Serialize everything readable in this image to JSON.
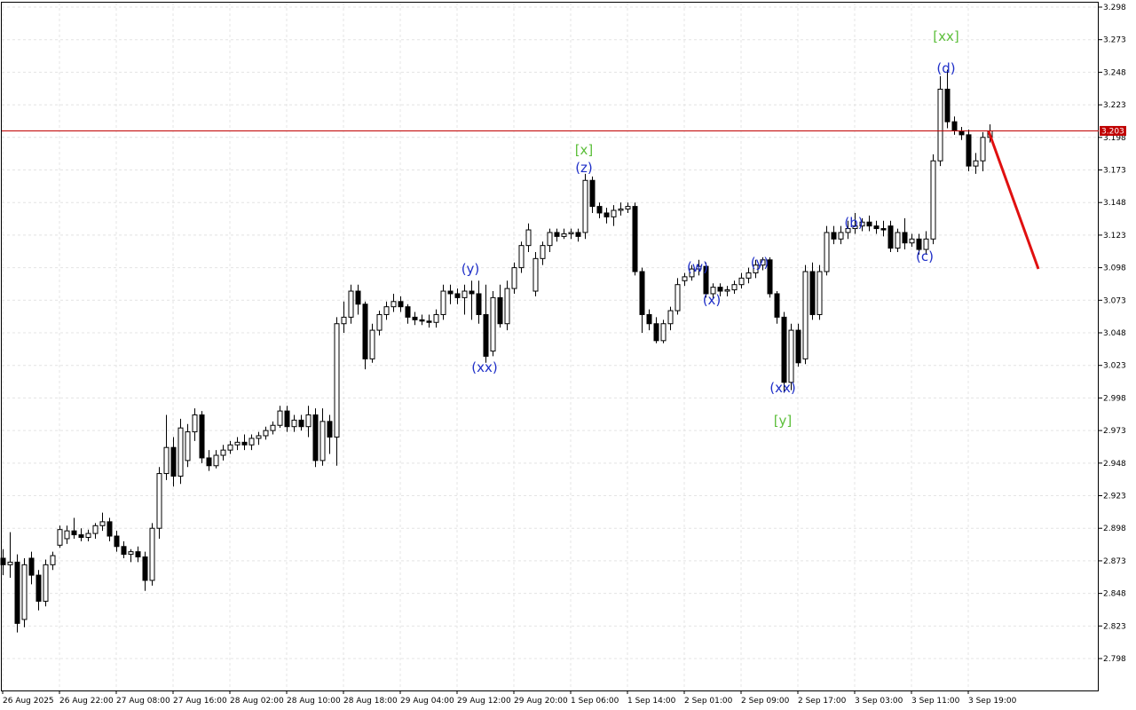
{
  "chart_data": {
    "type": "candlestick",
    "categories": [
      "26 Aug 2025",
      null,
      null,
      null,
      null,
      null,
      null,
      null,
      "26 Aug 22:00",
      null,
      null,
      null,
      null,
      null,
      null,
      null,
      "27 Aug 08:00",
      null,
      null,
      null,
      null,
      null,
      null,
      null,
      "27 Aug 16:00",
      null,
      null,
      null,
      null,
      null,
      null,
      null,
      "28 Aug 02:00",
      null,
      null,
      null,
      null,
      null,
      null,
      null,
      "28 Aug 10:00",
      null,
      null,
      null,
      null,
      null,
      null,
      null,
      "28 Aug 18:00",
      null,
      null,
      null,
      null,
      null,
      null,
      null,
      "29 Aug 04:00",
      null,
      null,
      null,
      null,
      null,
      null,
      null,
      "29 Aug 12:00",
      null,
      null,
      null,
      null,
      null,
      null,
      null,
      "29 Aug 20:00",
      null,
      null,
      null,
      null,
      null,
      null,
      null,
      "1 Sep 06:00",
      null,
      null,
      null,
      null,
      null,
      null,
      null,
      "1 Sep 14:00",
      null,
      null,
      null,
      null,
      null,
      null,
      null,
      "2 Sep 01:00",
      null,
      null,
      null,
      null,
      null,
      null,
      null,
      "2 Sep 09:00",
      null,
      null,
      null,
      null,
      null,
      null,
      null,
      "2 Sep 17:00",
      null,
      null,
      null,
      null,
      null,
      null,
      null,
      "3 Sep 03:00",
      null,
      null,
      null,
      null,
      null,
      null,
      null,
      "3 Sep 11:00",
      null,
      null,
      null,
      null,
      null,
      null,
      null,
      "3 Sep 19:00",
      null,
      null,
      null
    ],
    "ohlc": [
      [
        2.875,
        2.882,
        2.862,
        2.87
      ],
      [
        2.87,
        2.895,
        2.86,
        2.872
      ],
      [
        2.872,
        2.878,
        2.818,
        2.825
      ],
      [
        2.828,
        2.875,
        2.822,
        2.87
      ],
      [
        2.875,
        2.88,
        2.855,
        2.862
      ],
      [
        2.862,
        2.866,
        2.835,
        2.842
      ],
      [
        2.842,
        2.874,
        2.838,
        2.87
      ],
      [
        2.87,
        2.88,
        2.866,
        2.877
      ],
      [
        2.885,
        2.9,
        2.883,
        2.897
      ],
      [
        2.89,
        2.9,
        2.886,
        2.896
      ],
      [
        2.896,
        2.906,
        2.89,
        2.893
      ],
      [
        2.893,
        2.898,
        2.888,
        2.891
      ],
      [
        2.891,
        2.897,
        2.888,
        2.894
      ],
      [
        2.894,
        2.902,
        2.89,
        2.9
      ],
      [
        2.9,
        2.91,
        2.896,
        2.903
      ],
      [
        2.903,
        2.906,
        2.888,
        2.892
      ],
      [
        2.892,
        2.896,
        2.88,
        2.884
      ],
      [
        2.884,
        2.888,
        2.875,
        2.878
      ],
      [
        2.878,
        2.882,
        2.872,
        2.88
      ],
      [
        2.88,
        2.884,
        2.872,
        2.876
      ],
      [
        2.876,
        2.88,
        2.85,
        2.858
      ],
      [
        2.858,
        2.902,
        2.854,
        2.898
      ],
      [
        2.898,
        2.945,
        2.89,
        2.94
      ],
      [
        2.94,
        2.985,
        2.935,
        2.96
      ],
      [
        2.96,
        2.968,
        2.93,
        2.938
      ],
      [
        2.938,
        2.982,
        2.932,
        2.975
      ],
      [
        2.95,
        2.978,
        2.945,
        2.972
      ],
      [
        2.972,
        2.99,
        2.965,
        2.985
      ],
      [
        2.985,
        2.988,
        2.948,
        2.952
      ],
      [
        2.952,
        2.958,
        2.942,
        2.946
      ],
      [
        2.946,
        2.958,
        2.944,
        2.954
      ],
      [
        2.954,
        2.962,
        2.95,
        2.958
      ],
      [
        2.958,
        2.965,
        2.955,
        2.962
      ],
      [
        2.962,
        2.968,
        2.958,
        2.964
      ],
      [
        2.964,
        2.97,
        2.958,
        2.962
      ],
      [
        2.962,
        2.97,
        2.958,
        2.967
      ],
      [
        2.967,
        2.972,
        2.962,
        2.969
      ],
      [
        2.969,
        2.976,
        2.966,
        2.973
      ],
      [
        2.973,
        2.98,
        2.97,
        2.977
      ],
      [
        2.977,
        2.992,
        2.975,
        2.988
      ],
      [
        2.988,
        2.992,
        2.972,
        2.976
      ],
      [
        2.976,
        2.985,
        2.972,
        2.981
      ],
      [
        2.981,
        2.985,
        2.973,
        2.976
      ],
      [
        2.976,
        2.992,
        2.968,
        2.985
      ],
      [
        2.985,
        2.99,
        2.945,
        2.95
      ],
      [
        2.95,
        2.99,
        2.946,
        2.98
      ],
      [
        2.98,
        2.985,
        2.955,
        2.968
      ],
      [
        2.968,
        3.06,
        2.946,
        3.055
      ],
      [
        3.055,
        3.072,
        3.048,
        3.06
      ],
      [
        3.06,
        3.085,
        3.055,
        3.08
      ],
      [
        3.08,
        3.085,
        3.062,
        3.07
      ],
      [
        3.07,
        3.072,
        3.02,
        3.028
      ],
      [
        3.028,
        3.055,
        3.025,
        3.05
      ],
      [
        3.05,
        3.065,
        3.046,
        3.062
      ],
      [
        3.062,
        3.072,
        3.058,
        3.068
      ],
      [
        3.068,
        3.078,
        3.064,
        3.072
      ],
      [
        3.072,
        3.076,
        3.064,
        3.068
      ],
      [
        3.068,
        3.07,
        3.055,
        3.06
      ],
      [
        3.06,
        3.064,
        3.054,
        3.058
      ],
      [
        3.058,
        3.062,
        3.054,
        3.057
      ],
      [
        3.057,
        3.062,
        3.052,
        3.056
      ],
      [
        3.056,
        3.066,
        3.052,
        3.062
      ],
      [
        3.062,
        3.085,
        3.058,
        3.08
      ],
      [
        3.08,
        3.085,
        3.07,
        3.078
      ],
      [
        3.078,
        3.082,
        3.07,
        3.075
      ],
      [
        3.075,
        3.085,
        3.062,
        3.08
      ],
      [
        3.08,
        3.088,
        3.058,
        3.078
      ],
      [
        3.078,
        3.088,
        3.055,
        3.062
      ],
      [
        3.062,
        3.085,
        3.025,
        3.03
      ],
      [
        3.034,
        3.08,
        3.03,
        3.075
      ],
      [
        3.075,
        3.085,
        3.052,
        3.055
      ],
      [
        3.055,
        3.088,
        3.05,
        3.082
      ],
      [
        3.082,
        3.102,
        3.078,
        3.098
      ],
      [
        3.098,
        3.118,
        3.094,
        3.115
      ],
      [
        3.115,
        3.132,
        3.11,
        3.127
      ],
      [
        3.08,
        3.11,
        3.076,
        3.105
      ],
      [
        3.105,
        3.118,
        3.1,
        3.115
      ],
      [
        3.115,
        3.128,
        3.11,
        3.125
      ],
      [
        3.125,
        3.128,
        3.118,
        3.122
      ],
      [
        3.122,
        3.128,
        3.12,
        3.124
      ],
      [
        3.124,
        3.128,
        3.12,
        3.125
      ],
      [
        3.125,
        3.128,
        3.118,
        3.122
      ],
      [
        3.125,
        3.17,
        3.12,
        3.165
      ],
      [
        3.165,
        3.168,
        3.14,
        3.145
      ],
      [
        3.145,
        3.148,
        3.136,
        3.14
      ],
      [
        3.14,
        3.144,
        3.132,
        3.137
      ],
      [
        3.137,
        3.146,
        3.13,
        3.142
      ],
      [
        3.142,
        3.148,
        3.138,
        3.143
      ],
      [
        3.143,
        3.148,
        3.14,
        3.145
      ],
      [
        3.145,
        3.148,
        3.092,
        3.095
      ],
      [
        3.095,
        3.098,
        3.048,
        3.062
      ],
      [
        3.062,
        3.066,
        3.05,
        3.055
      ],
      [
        3.055,
        3.06,
        3.04,
        3.042
      ],
      [
        3.042,
        3.058,
        3.04,
        3.055
      ],
      [
        3.055,
        3.068,
        3.05,
        3.065
      ],
      [
        3.065,
        3.09,
        3.062,
        3.085
      ],
      [
        3.088,
        3.094,
        3.084,
        3.091
      ],
      [
        3.091,
        3.1,
        3.088,
        3.097
      ],
      [
        3.097,
        3.104,
        3.092,
        3.099
      ],
      [
        3.099,
        3.102,
        3.075,
        3.078
      ],
      [
        3.078,
        3.086,
        3.074,
        3.083
      ],
      [
        3.083,
        3.086,
        3.076,
        3.08
      ],
      [
        3.08,
        3.084,
        3.076,
        3.081
      ],
      [
        3.081,
        3.088,
        3.078,
        3.085
      ],
      [
        3.085,
        3.094,
        3.082,
        3.09
      ],
      [
        3.09,
        3.098,
        3.086,
        3.094
      ],
      [
        3.094,
        3.104,
        3.09,
        3.1
      ],
      [
        3.1,
        3.106,
        3.096,
        3.104
      ],
      [
        3.104,
        3.106,
        3.075,
        3.078
      ],
      [
        3.078,
        3.08,
        3.055,
        3.06
      ],
      [
        3.06,
        3.064,
        3.002,
        3.01
      ],
      [
        3.01,
        3.055,
        3.004,
        3.05
      ],
      [
        3.05,
        3.055,
        3.022,
        3.025
      ],
      [
        3.028,
        3.1,
        3.024,
        3.095
      ],
      [
        3.095,
        3.102,
        3.058,
        3.062
      ],
      [
        3.062,
        3.1,
        3.058,
        3.095
      ],
      [
        3.095,
        3.13,
        3.092,
        3.125
      ],
      [
        3.125,
        3.13,
        3.116,
        3.12
      ],
      [
        3.12,
        3.13,
        3.116,
        3.125
      ],
      [
        3.125,
        3.134,
        3.12,
        3.128
      ],
      [
        3.128,
        3.14,
        3.124,
        3.13
      ],
      [
        3.13,
        3.136,
        3.126,
        3.133
      ],
      [
        3.133,
        3.138,
        3.126,
        3.13
      ],
      [
        3.13,
        3.134,
        3.124,
        3.128
      ],
      [
        3.128,
        3.134,
        3.122,
        3.127
      ],
      [
        3.13,
        3.134,
        3.11,
        3.113
      ],
      [
        3.113,
        3.128,
        3.11,
        3.125
      ],
      [
        3.125,
        3.136,
        3.112,
        3.117
      ],
      [
        3.117,
        3.124,
        3.114,
        3.12
      ],
      [
        3.12,
        3.124,
        3.108,
        3.112
      ],
      [
        3.112,
        3.126,
        3.108,
        3.12
      ],
      [
        3.12,
        3.185,
        3.116,
        3.18
      ],
      [
        3.18,
        3.245,
        3.176,
        3.235
      ],
      [
        3.235,
        3.25,
        3.205,
        3.21
      ],
      [
        3.21,
        3.214,
        3.2,
        3.203
      ],
      [
        3.203,
        3.206,
        3.196,
        3.2
      ],
      [
        3.2,
        3.204,
        3.172,
        3.176
      ],
      [
        3.176,
        3.186,
        3.17,
        3.18
      ],
      [
        3.18,
        3.202,
        3.172,
        3.198
      ],
      [
        3.198,
        3.208,
        3.194,
        3.203
      ]
    ],
    "ylim": [
      2.7735,
      3.3014
    ],
    "yticks": [
      2.798,
      2.823,
      2.848,
      2.873,
      2.898,
      2.923,
      2.948,
      2.973,
      2.998,
      3.023,
      3.048,
      3.073,
      3.098,
      3.123,
      3.148,
      3.173,
      3.198,
      3.223,
      3.248,
      3.273,
      3.298
    ],
    "grid": true,
    "last_price": 3.203,
    "last_price_color": "#c00000",
    "up_color": "#ffffff",
    "down_color": "#000000",
    "annotations": [
      {
        "text": "[xx]",
        "color": "#5cbf3a"
      },
      {
        "text": "(d)",
        "color": "#1f2fc8"
      },
      {
        "text": "[x]",
        "color": "#5cbf3a"
      },
      {
        "text": "(z)",
        "color": "#1f2fc8"
      },
      {
        "text": "(y)",
        "color": "#1f2fc8"
      },
      {
        "text": "(xx)",
        "color": "#1f2fc8"
      },
      {
        "text": "(w)",
        "color": "#1f2fc8"
      },
      {
        "text": "(x)",
        "color": "#1f2fc8"
      },
      {
        "text": "(y)",
        "color": "#1f2fc8"
      },
      {
        "text": "(b)",
        "color": "#1f2fc8"
      },
      {
        "text": "(xx)",
        "color": "#1f2fc8"
      },
      {
        "text": "[y]",
        "color": "#5cbf3a"
      },
      {
        "text": "(c)",
        "color": "#1f2fc8"
      }
    ]
  }
}
